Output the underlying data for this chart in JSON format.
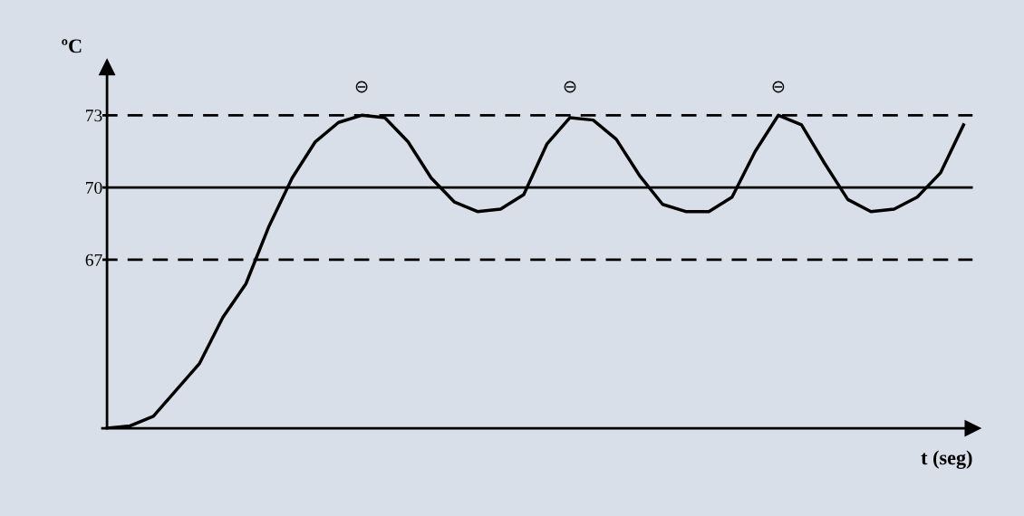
{
  "chart_data": {
    "type": "line",
    "ylabel": "ºC",
    "xlabel": "t (seg)",
    "categories": [
      null,
      null,
      null,
      null,
      null,
      null,
      null,
      null,
      null,
      null,
      null,
      null,
      null,
      null,
      null,
      null,
      null,
      null,
      null,
      null,
      null,
      null,
      null,
      null,
      null,
      null,
      null,
      null,
      null,
      null,
      null,
      null,
      null,
      null,
      null,
      null,
      null,
      null
    ],
    "series": [
      {
        "color": "#000000",
        "values": [
          60,
          60.1,
          60.5,
          61.6,
          62.7,
          64.6,
          66.0,
          68.4,
          70.4,
          71.9,
          72.7,
          73,
          72.9,
          71.9,
          70.4,
          69.4,
          69.0,
          69.1,
          69.7,
          71.8,
          72.9,
          72.8,
          72.0,
          70.5,
          69.3,
          69.0,
          69.0,
          69.6,
          71.5,
          73.0,
          72.6,
          71.0,
          69.5,
          69.0,
          69.1,
          69.6,
          70.6,
          72.6
        ]
      }
    ],
    "ylim": [
      60,
      75
    ],
    "yticks": [
      67,
      70,
      73
    ],
    "tick_labels": "y",
    "grid": false,
    "legend": false,
    "marker": "none",
    "line_style": "solid",
    "ref_lines": [
      {
        "axis": "y",
        "value": 73,
        "color": "#000000",
        "line_style": "dashed"
      },
      {
        "axis": "y",
        "value": 70,
        "color": "#000000",
        "line_style": "solid"
      },
      {
        "axis": "y",
        "value": 67,
        "color": "#000000",
        "line_style": "dashed"
      }
    ],
    "annotations": [
      "⊖",
      "⊖",
      "⊖"
    ]
  }
}
